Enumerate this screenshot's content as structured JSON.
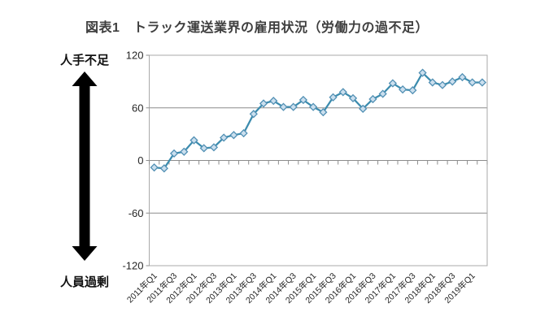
{
  "figure": {
    "title": "図表1　トラック運送業界の雇用状況（労働力の過不足）"
  },
  "left_annotation": {
    "top_label": "人手不足",
    "bottom_label": "人員過剰",
    "arrow_icon": "double-headed-vertical-arrow"
  },
  "chart_data": {
    "type": "line",
    "categories": [
      "2011年Q1",
      "2011年Q2",
      "2011年Q3",
      "2011年Q4",
      "2012年Q1",
      "2012年Q2",
      "2012年Q3",
      "2012年Q4",
      "2013年Q1",
      "2013年Q2",
      "2013年Q3",
      "2013年Q4",
      "2014年Q1",
      "2014年Q2",
      "2014年Q3",
      "2014年Q4",
      "2015年Q1",
      "2015年Q2",
      "2015年Q3",
      "2015年Q4",
      "2016年Q1",
      "2016年Q2",
      "2016年Q3",
      "2016年Q4",
      "2017年Q1",
      "2017年Q2",
      "2017年Q3",
      "2017年Q4",
      "2018年Q1",
      "2018年Q2",
      "2018年Q3",
      "2018年Q4",
      "2019年Q1",
      "2019年Q2"
    ],
    "values": [
      -8,
      -9,
      8,
      10,
      23,
      14,
      15,
      26,
      29,
      31,
      53,
      65,
      68,
      61,
      61,
      69,
      61,
      55,
      72,
      78,
      71,
      59,
      70,
      76,
      88,
      81,
      80,
      100,
      89,
      86,
      90,
      95,
      89,
      89
    ],
    "xtick_labels": [
      "2011年Q1",
      "2011年Q3",
      "2012年Q1",
      "2012年Q3",
      "2013年Q1",
      "2013年Q3",
      "2014年Q1",
      "2014年Q3",
      "2015年Q1",
      "2015年Q3",
      "2016年Q1",
      "2016年Q3",
      "2017年Q1",
      "2017年Q3",
      "2018年Q1",
      "2018年Q3",
      "2019年Q1"
    ],
    "xtick_every": 2,
    "yticks": [
      120,
      60,
      0,
      -60,
      -120
    ],
    "ylim": [
      -120,
      120
    ],
    "grid": "horizontal",
    "legend": "none",
    "marker": "diamond",
    "colors": {
      "line": "#3C8CAE",
      "marker_fill": "#CBDFEE",
      "marker_stroke": "#5290B4",
      "gridline": "#8C8C8C",
      "border": "#A9A9A9",
      "tick_text": "#262626",
      "arrow": "#000000"
    }
  }
}
